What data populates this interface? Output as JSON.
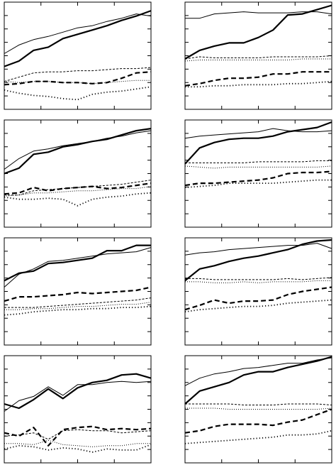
{
  "figure": {
    "panel_count": 8,
    "rows": 4,
    "cols": 2,
    "show_tick_labels": false
  },
  "chart_data": [
    {
      "type": "line",
      "x": [
        1,
        2,
        3,
        4,
        5,
        6,
        7,
        8,
        9,
        10,
        11
      ],
      "xlim": [
        1,
        11
      ],
      "ylim": [
        0,
        10
      ],
      "grid": false,
      "series": [
        {
          "style": "thin-solid",
          "values": [
            5.2,
            6.0,
            6.5,
            6.8,
            7.2,
            7.6,
            7.8,
            8.2,
            8.5,
            8.9,
            8.7
          ]
        },
        {
          "style": "thick-solid",
          "values": [
            4.0,
            4.5,
            5.5,
            5.8,
            6.6,
            7.0,
            7.4,
            7.8,
            8.3,
            8.7,
            9.2
          ]
        },
        {
          "style": "thin-dashed",
          "values": [
            2.6,
            3.0,
            3.4,
            3.5,
            3.5,
            3.6,
            3.6,
            3.7,
            3.8,
            3.8,
            3.9
          ]
        },
        {
          "style": "thick-dashed",
          "values": [
            2.3,
            2.4,
            2.6,
            2.6,
            2.5,
            2.5,
            2.4,
            2.5,
            2.9,
            3.4,
            3.5
          ]
        },
        {
          "style": "thin-dotted",
          "values": [
            2.6,
            2.5,
            2.6,
            2.6,
            2.5,
            2.5,
            2.4,
            2.5,
            2.6,
            2.7,
            2.7
          ]
        },
        {
          "style": "thick-dotted",
          "values": [
            1.8,
            1.5,
            1.3,
            1.2,
            1.0,
            0.9,
            1.4,
            1.6,
            1.7,
            1.9,
            2.1
          ]
        }
      ]
    },
    {
      "type": "line",
      "x": [
        1,
        2,
        3,
        4,
        5,
        6,
        7,
        8,
        9,
        10,
        11
      ],
      "xlim": [
        1,
        11
      ],
      "ylim": [
        0,
        10
      ],
      "grid": false,
      "series": [
        {
          "style": "thin-solid",
          "values": [
            8.5,
            8.5,
            8.9,
            9.0,
            9.1,
            9.0,
            9.0,
            9.0,
            9.1,
            9.1,
            8.9
          ]
        },
        {
          "style": "thick-solid",
          "values": [
            4.7,
            5.5,
            5.9,
            6.2,
            6.2,
            6.7,
            7.4,
            8.8,
            8.9,
            9.3,
            9.7
          ]
        },
        {
          "style": "thin-dashed",
          "values": [
            4.7,
            4.9,
            4.8,
            4.8,
            4.8,
            4.8,
            4.9,
            4.9,
            4.9,
            4.9,
            5.0
          ]
        },
        {
          "style": "thick-dashed",
          "values": [
            2.2,
            2.4,
            2.7,
            2.9,
            2.9,
            3.0,
            3.3,
            3.3,
            3.5,
            3.5,
            3.5
          ]
        },
        {
          "style": "thin-dotted",
          "values": [
            4.5,
            4.6,
            4.6,
            4.6,
            4.6,
            4.6,
            4.6,
            4.6,
            4.7,
            4.7,
            4.7
          ]
        },
        {
          "style": "thick-dotted",
          "values": [
            2.1,
            2.1,
            2.2,
            2.2,
            2.3,
            2.3,
            2.3,
            2.4,
            2.4,
            2.5,
            2.6
          ]
        }
      ]
    },
    {
      "type": "line",
      "x": [
        1,
        2,
        3,
        4,
        5,
        6,
        7,
        8,
        9,
        10,
        11
      ],
      "xlim": [
        1,
        11
      ],
      "ylim": [
        0,
        10
      ],
      "grid": false,
      "series": [
        {
          "style": "thin-solid",
          "values": [
            5.4,
            6.4,
            7.1,
            7.3,
            7.6,
            7.8,
            8.0,
            8.3,
            8.5,
            8.8,
            9.0
          ]
        },
        {
          "style": "thick-solid",
          "values": [
            5.0,
            5.5,
            6.8,
            7.0,
            7.5,
            7.7,
            8.0,
            8.2,
            8.6,
            9.0,
            9.2
          ]
        },
        {
          "style": "thin-dashed",
          "values": [
            3.0,
            3.0,
            3.4,
            3.5,
            3.6,
            3.7,
            3.8,
            3.9,
            4.0,
            4.2,
            4.4
          ]
        },
        {
          "style": "thick-dashed",
          "values": [
            3.1,
            3.2,
            3.7,
            3.4,
            3.6,
            3.7,
            3.8,
            3.6,
            3.7,
            3.9,
            4.1
          ]
        },
        {
          "style": "thin-dotted",
          "values": [
            2.9,
            3.0,
            3.2,
            3.2,
            3.3,
            3.4,
            3.4,
            3.5,
            3.6,
            3.6,
            3.8
          ]
        },
        {
          "style": "thick-dotted",
          "values": [
            2.8,
            2.6,
            2.6,
            2.7,
            2.6,
            2.0,
            2.6,
            2.8,
            2.9,
            3.1,
            3.2
          ]
        }
      ]
    },
    {
      "type": "line",
      "x": [
        1,
        2,
        3,
        4,
        5,
        6,
        7,
        8,
        9,
        10,
        11
      ],
      "xlim": [
        1,
        11
      ],
      "ylim": [
        0,
        10
      ],
      "grid": false,
      "series": [
        {
          "style": "thin-solid",
          "values": [
            8.3,
            8.5,
            8.6,
            8.7,
            8.8,
            8.9,
            9.2,
            9.0,
            8.9,
            8.9,
            9.0
          ]
        },
        {
          "style": "thick-solid",
          "values": [
            5.9,
            7.4,
            7.9,
            8.2,
            8.3,
            8.3,
            8.5,
            8.9,
            9.1,
            9.3,
            9.8
          ]
        },
        {
          "style": "thin-dashed",
          "values": [
            6.0,
            6.0,
            6.0,
            6.0,
            6.0,
            6.1,
            6.1,
            6.1,
            6.1,
            6.2,
            6.2
          ]
        },
        {
          "style": "thick-dashed",
          "values": [
            3.9,
            4.1,
            4.1,
            4.2,
            4.3,
            4.4,
            4.6,
            5.0,
            5.1,
            5.1,
            5.2
          ]
        },
        {
          "style": "thin-dotted",
          "values": [
            5.7,
            5.6,
            5.5,
            5.6,
            5.6,
            5.6,
            5.6,
            5.6,
            5.6,
            5.6,
            5.7
          ]
        },
        {
          "style": "thick-dotted",
          "values": [
            3.7,
            3.8,
            3.9,
            4.1,
            4.1,
            4.1,
            4.1,
            4.2,
            4.3,
            4.4,
            4.4
          ]
        }
      ]
    },
    {
      "type": "line",
      "x": [
        1,
        2,
        3,
        4,
        5,
        6,
        7,
        8,
        9,
        10,
        11
      ],
      "xlim": [
        1,
        11
      ],
      "ylim": [
        0,
        10
      ],
      "grid": false,
      "series": [
        {
          "style": "thin-solid",
          "values": [
            5.4,
            6.6,
            7.1,
            7.8,
            7.9,
            8.1,
            8.3,
            8.5,
            8.6,
            8.7,
            9.1
          ]
        },
        {
          "style": "thick-solid",
          "values": [
            6.0,
            6.7,
            6.9,
            7.6,
            7.7,
            7.9,
            8.1,
            8.8,
            8.8,
            9.3,
            9.3
          ]
        },
        {
          "style": "thin-dashed",
          "values": [
            3.5,
            3.5,
            3.5,
            3.6,
            3.7,
            3.8,
            3.9,
            4.0,
            4.1,
            4.2,
            4.4
          ]
        },
        {
          "style": "thick-dashed",
          "values": [
            4.1,
            4.5,
            4.5,
            4.6,
            4.7,
            4.9,
            4.8,
            4.9,
            5.0,
            5.1,
            5.4
          ]
        },
        {
          "style": "thin-dotted",
          "values": [
            3.3,
            3.3,
            3.4,
            3.4,
            3.5,
            3.6,
            3.6,
            3.7,
            3.8,
            3.8,
            4.0
          ]
        },
        {
          "style": "thick-dotted",
          "values": [
            2.8,
            2.9,
            3.1,
            3.2,
            3.3,
            3.3,
            3.4,
            3.4,
            3.5,
            3.5,
            3.6
          ]
        }
      ]
    },
    {
      "type": "line",
      "x": [
        1,
        2,
        3,
        4,
        5,
        6,
        7,
        8,
        9,
        10,
        11
      ],
      "xlim": [
        1,
        11
      ],
      "ylim": [
        0,
        10
      ],
      "grid": false,
      "series": [
        {
          "style": "thin-solid",
          "values": [
            8.4,
            8.6,
            8.7,
            8.9,
            9.0,
            9.1,
            9.2,
            9.3,
            9.3,
            9.5,
            9.0
          ]
        },
        {
          "style": "thick-solid",
          "values": [
            6.0,
            7.1,
            7.4,
            7.8,
            8.1,
            8.3,
            8.6,
            8.9,
            9.4,
            9.7,
            9.8
          ]
        },
        {
          "style": "thin-dashed",
          "values": [
            6.2,
            6.2,
            6.1,
            6.1,
            6.1,
            6.1,
            6.1,
            6.2,
            6.1,
            6.2,
            6.3
          ]
        },
        {
          "style": "thick-dashed",
          "values": [
            3.3,
            3.7,
            4.2,
            3.9,
            4.1,
            4.1,
            4.2,
            4.7,
            5.0,
            5.2,
            5.4
          ]
        },
        {
          "style": "thin-dotted",
          "values": [
            5.9,
            5.9,
            5.8,
            5.8,
            5.9,
            5.8,
            5.9,
            5.9,
            5.9,
            6.0,
            6.0
          ]
        },
        {
          "style": "thick-dotted",
          "values": [
            3.1,
            3.3,
            3.4,
            3.5,
            3.6,
            3.6,
            3.7,
            3.9,
            4.0,
            4.1,
            4.2
          ]
        }
      ]
    },
    {
      "type": "line",
      "x": [
        1,
        2,
        3,
        4,
        5,
        6,
        7,
        8,
        9,
        10,
        11
      ],
      "xlim": [
        1,
        11
      ],
      "ylim": [
        0,
        10
      ],
      "grid": false,
      "series": [
        {
          "style": "thin-solid",
          "values": [
            4.8,
            5.8,
            6.2,
            7.1,
            6.3,
            7.3,
            7.3,
            7.5,
            7.6,
            7.5,
            7.6
          ]
        },
        {
          "style": "thick-solid",
          "values": [
            5.5,
            5.1,
            5.9,
            6.9,
            6.0,
            7.0,
            7.5,
            7.7,
            8.2,
            8.3,
            7.9
          ]
        },
        {
          "style": "thin-dashed",
          "values": [
            2.5,
            2.6,
            2.8,
            2.2,
            3.0,
            3.1,
            3.0,
            3.0,
            2.8,
            2.9,
            3.0
          ]
        },
        {
          "style": "thick-dashed",
          "values": [
            2.8,
            2.5,
            3.3,
            1.6,
            3.1,
            3.3,
            3.4,
            3.1,
            3.2,
            3.1,
            3.2
          ]
        },
        {
          "style": "thin-dotted",
          "values": [
            1.8,
            1.8,
            1.7,
            2.1,
            1.7,
            1.6,
            1.5,
            1.6,
            1.6,
            1.8,
            1.8
          ]
        },
        {
          "style": "thick-dotted",
          "values": [
            1.3,
            1.6,
            1.5,
            1.2,
            1.4,
            1.3,
            1.0,
            1.3,
            1.2,
            1.2,
            1.7
          ]
        }
      ]
    },
    {
      "type": "line",
      "x": [
        1,
        2,
        3,
        4,
        5,
        6,
        7,
        8,
        9,
        10,
        11
      ],
      "xlim": [
        1,
        11
      ],
      "ylim": [
        0,
        10
      ],
      "grid": false,
      "series": [
        {
          "style": "thin-solid",
          "values": [
            7.2,
            7.9,
            8.3,
            8.5,
            8.8,
            8.9,
            9.1,
            9.3,
            9.3,
            9.6,
            9.8
          ]
        },
        {
          "style": "thick-solid",
          "values": [
            5.5,
            6.7,
            7.1,
            7.5,
            8.2,
            8.5,
            8.5,
            8.9,
            9.2,
            9.5,
            9.9
          ]
        },
        {
          "style": "thin-dashed",
          "values": [
            5.5,
            5.5,
            5.5,
            5.5,
            5.4,
            5.4,
            5.4,
            5.5,
            5.5,
            5.5,
            5.4
          ]
        },
        {
          "style": "thick-dashed",
          "values": [
            2.8,
            3.0,
            3.4,
            3.6,
            3.6,
            3.6,
            3.5,
            3.8,
            4.0,
            4.5,
            5.0
          ]
        },
        {
          "style": "thin-dotted",
          "values": [
            5.1,
            5.1,
            5.1,
            5.0,
            5.0,
            5.0,
            5.0,
            5.0,
            5.0,
            5.0,
            5.1
          ]
        },
        {
          "style": "thick-dotted",
          "values": [
            1.8,
            1.9,
            2.0,
            2.1,
            2.2,
            2.3,
            2.4,
            2.6,
            2.6,
            2.7,
            3.0
          ]
        }
      ]
    }
  ]
}
